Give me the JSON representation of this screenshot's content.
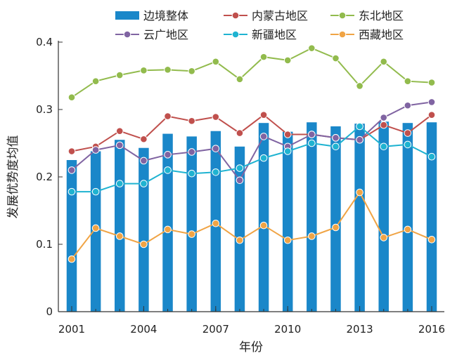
{
  "chart_data": {
    "type": "bar",
    "title": "",
    "xlabel": "年份",
    "ylabel": "发展优势度均值",
    "ylim": [
      0,
      0.4
    ],
    "yticks": [
      "0",
      "0.1",
      "0.2",
      "0.3",
      "0.4"
    ],
    "xticks": [
      "2001",
      "2004",
      "2007",
      "2010",
      "2013",
      "2016"
    ],
    "x": [
      2001,
      2002,
      2003,
      2004,
      2005,
      2006,
      2007,
      2008,
      2009,
      2010,
      2011,
      2012,
      2013,
      2014,
      2015,
      2016
    ],
    "grid": false,
    "legend_position": "top",
    "series": [
      {
        "name": "边境整体",
        "kind": "bar",
        "color": "#1a87c9",
        "values": [
          0.225,
          0.238,
          0.255,
          0.243,
          0.264,
          0.26,
          0.268,
          0.245,
          0.28,
          0.267,
          0.281,
          0.275,
          0.279,
          0.282,
          0.28,
          0.281
        ]
      },
      {
        "name": "内蒙古地区",
        "kind": "line",
        "color": "#c0504d",
        "values": [
          0.238,
          0.245,
          0.268,
          0.256,
          0.29,
          0.283,
          0.289,
          0.265,
          0.292,
          0.263,
          0.263,
          0.258,
          0.255,
          0.277,
          0.265,
          0.292
        ]
      },
      {
        "name": "东北地区",
        "kind": "line",
        "color": "#92bb4d",
        "values": [
          0.318,
          0.342,
          0.351,
          0.358,
          0.359,
          0.357,
          0.371,
          0.345,
          0.378,
          0.373,
          0.391,
          0.376,
          0.335,
          0.371,
          0.342,
          0.34
        ]
      },
      {
        "name": "云广地区",
        "kind": "line",
        "color": "#8064a2",
        "values": [
          0.21,
          0.24,
          0.247,
          0.224,
          0.233,
          0.237,
          0.242,
          0.195,
          0.26,
          0.245,
          0.263,
          0.258,
          0.255,
          0.288,
          0.306,
          0.311
        ]
      },
      {
        "name": "新疆地区",
        "kind": "line",
        "color": "#1fb3d1",
        "values": [
          0.178,
          0.178,
          0.19,
          0.19,
          0.21,
          0.205,
          0.207,
          0.213,
          0.228,
          0.238,
          0.25,
          0.245,
          0.275,
          0.245,
          0.248,
          0.23
        ]
      },
      {
        "name": "西藏地区",
        "kind": "line",
        "color": "#f0a445",
        "values": [
          0.078,
          0.124,
          0.112,
          0.1,
          0.122,
          0.115,
          0.131,
          0.106,
          0.128,
          0.106,
          0.112,
          0.125,
          0.177,
          0.11,
          0.122,
          0.107
        ]
      }
    ]
  }
}
